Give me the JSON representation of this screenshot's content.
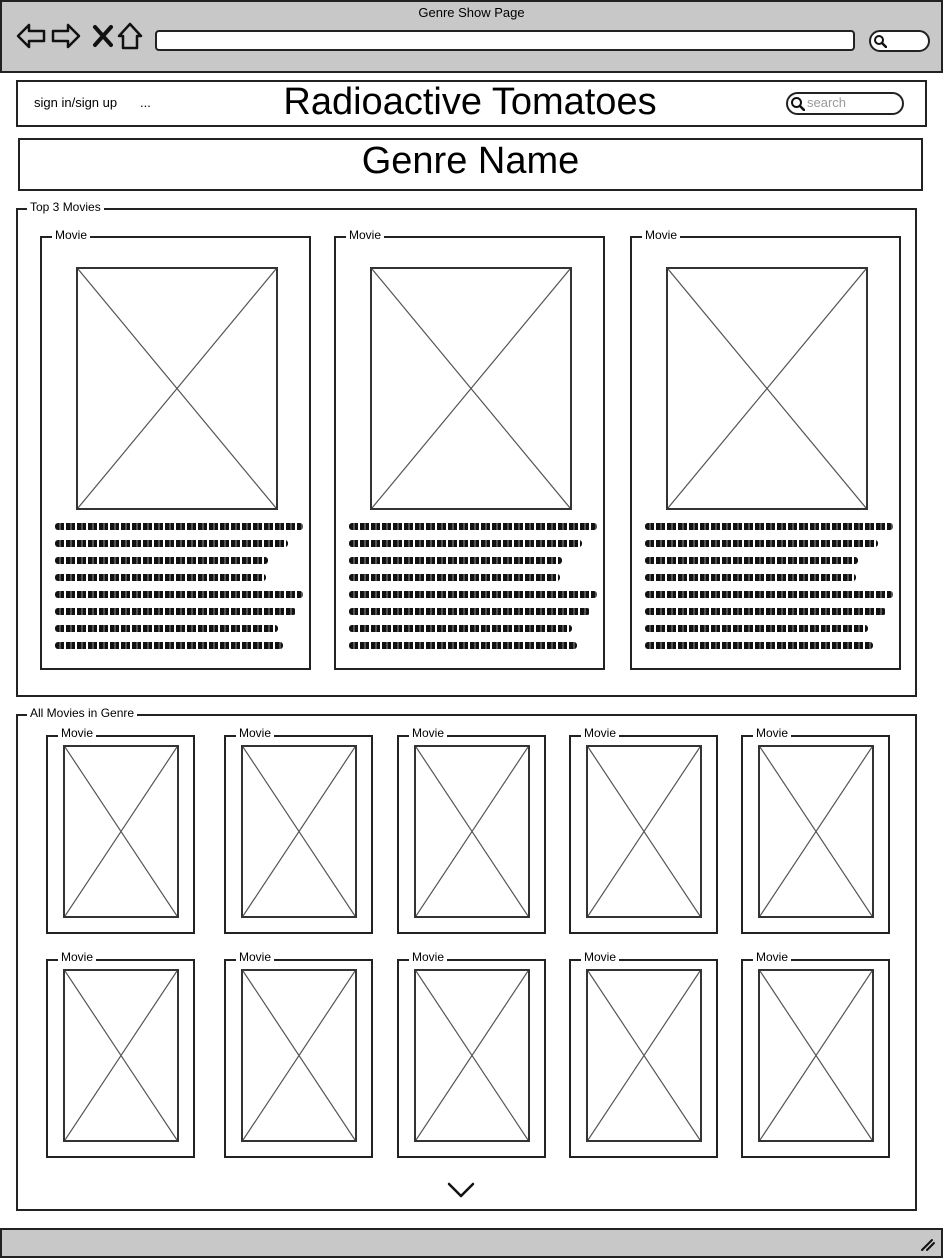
{
  "window": {
    "title": "Genre Show Page"
  },
  "header": {
    "auth_link": "sign in/sign up",
    "more_link": "...",
    "site_title": "Radioactive Tomatoes",
    "search_placeholder": "search"
  },
  "genre": {
    "name": "Genre Name"
  },
  "top_movies": {
    "label": "Top 3 Movies",
    "items": [
      {
        "label": "Movie"
      },
      {
        "label": "Movie"
      },
      {
        "label": "Movie"
      }
    ]
  },
  "all_movies": {
    "label": "All Movies in Genre",
    "rows": [
      [
        {
          "label": "Movie"
        },
        {
          "label": "Movie"
        },
        {
          "label": "Movie"
        },
        {
          "label": "Movie"
        },
        {
          "label": "Movie"
        }
      ],
      [
        {
          "label": "Movie"
        },
        {
          "label": "Movie"
        },
        {
          "label": "Movie"
        },
        {
          "label": "Movie"
        },
        {
          "label": "Movie"
        }
      ]
    ]
  },
  "icons": {
    "back": "back-arrow-icon",
    "forward": "forward-arrow-icon",
    "stop": "close-icon",
    "home": "home-icon",
    "search": "search-icon",
    "scroll": "chevron-down-icon"
  }
}
